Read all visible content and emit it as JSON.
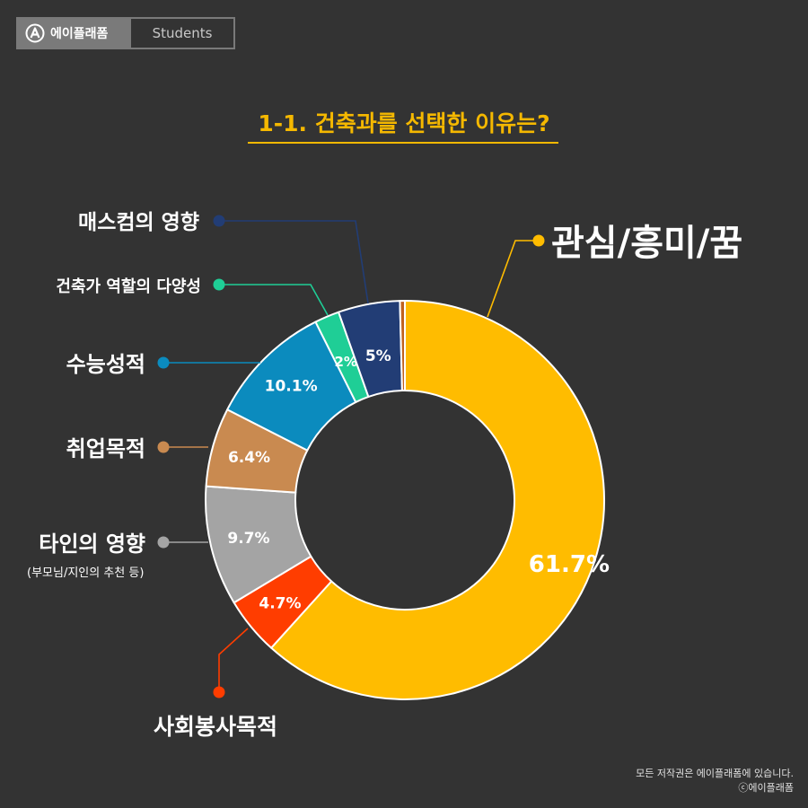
{
  "brand": {
    "name": "에이플래폼",
    "section": "Students"
  },
  "title": "1-1. 건축과를 선택한 이유는?",
  "chart_data": {
    "type": "pie",
    "donut": true,
    "slices": [
      {
        "name": "관심/흥미/꿈",
        "value": 61.7,
        "label": "61.7%",
        "color": "#ffbc00",
        "label_color": "#ffffff",
        "label_size": 26
      },
      {
        "name": "사회봉사목적",
        "value": 4.7,
        "label": "4.7%",
        "color": "#ff3d00",
        "label_color": "#ffffff",
        "label_size": 17
      },
      {
        "name": "타인의 영향",
        "sub": "(부모님/지인의 추천 등)",
        "value": 9.7,
        "label": "9.7%",
        "color": "#a4a4a4",
        "label_color": "#ffffff",
        "label_size": 17
      },
      {
        "name": "취업목적",
        "value": 6.4,
        "label": "6.4%",
        "color": "#c98a50",
        "label_color": "#ffffff",
        "label_size": 17
      },
      {
        "name": "수능성적",
        "value": 10.1,
        "label": "10.1%",
        "color": "#0b8bbe",
        "label_color": "#ffffff",
        "label_size": 17
      },
      {
        "name": "건축가 역할의 다양성",
        "value": 2,
        "label": "2%",
        "color": "#1fce96",
        "label_color": "#ffffff",
        "label_size": 15
      },
      {
        "name": "매스컴의 영향",
        "value": 5,
        "label": "5%",
        "color": "#223d75",
        "label_color": "#ffffff",
        "label_size": 17
      },
      {
        "name": "",
        "value": 0.4,
        "label": "",
        "color": "#c0621e",
        "label_color": "#ffffff",
        "label_size": 0
      }
    ]
  },
  "copyright": {
    "line1": "모든 저작권은 에이플래폼에 있습니다.",
    "line2": "ⓒ에이플래폼"
  }
}
